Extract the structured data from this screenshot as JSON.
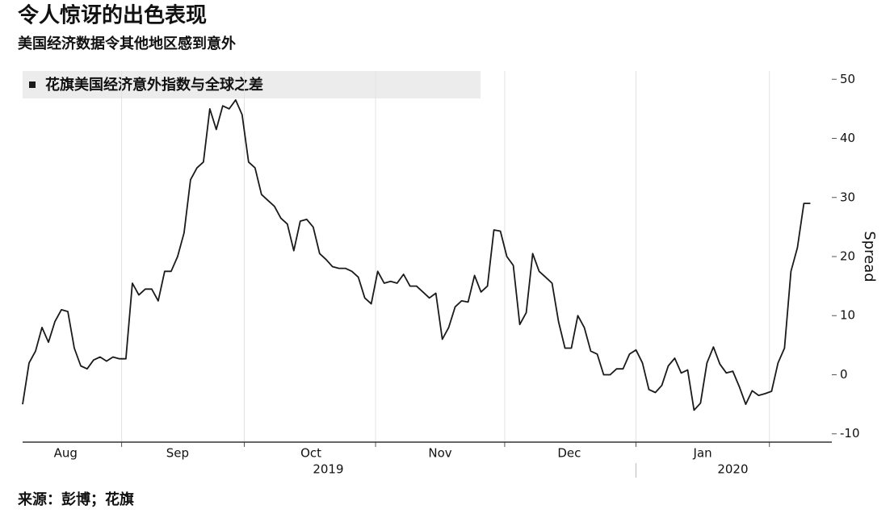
{
  "chart_data": {
    "type": "line",
    "title": "令人惊讶的出色表现",
    "subtitle": "美国经济数据令其他地区感到意外",
    "source": "来源：彭博；花旗",
    "y_label": "Spread",
    "x": [
      0,
      1.5,
      3,
      4.5,
      6,
      7.5,
      9,
      10.5,
      12,
      13.5,
      15,
      16.5,
      18,
      19.5,
      21,
      22.5,
      24,
      25.5,
      27,
      28.5,
      30,
      31.5,
      33,
      34.5,
      36,
      37.5,
      39,
      40.5,
      42,
      43.5,
      45,
      46.5,
      48,
      49.5,
      51,
      52.5,
      54,
      55.5,
      57,
      58.5,
      60,
      61.5,
      63,
      64.5,
      66,
      67.5,
      69,
      70.5,
      72,
      73.5,
      75,
      76.5,
      78,
      79.5,
      81,
      82.5,
      84,
      85.5,
      87,
      88.5,
      90,
      91.5,
      93,
      94.5,
      96,
      97.5,
      99,
      100.5,
      102,
      103.5,
      105,
      106.5,
      108,
      109.5,
      111,
      112.5,
      114,
      115.5,
      117,
      118.5,
      120,
      121.5,
      123,
      124.5,
      126,
      127.5,
      129,
      130.5,
      132,
      133.5,
      135,
      136.5,
      138,
      139.5,
      141,
      142.5,
      144,
      145.5,
      147,
      148.5,
      150,
      151.5,
      153,
      154.5,
      156,
      157.5,
      159,
      160.5,
      162,
      163.5,
      165,
      166.5,
      168,
      169.5,
      171,
      172.5,
      174,
      175.5,
      177,
      178.5,
      180,
      181.5,
      183
    ],
    "series": [
      {
        "name": "花旗美国经济意外指数与全球之差",
        "color": "#1a1a1a",
        "values": [
          -5,
          2,
          4,
          8,
          5.5,
          9,
          11,
          10.7,
          4.5,
          1.5,
          1,
          2.5,
          3,
          2.3,
          3,
          2.7,
          2.7,
          15.5,
          13.5,
          14.5,
          14.5,
          12.5,
          17.5,
          17.5,
          20,
          24,
          33,
          35,
          36,
          45,
          41.5,
          45.5,
          45,
          46.5,
          44,
          36,
          35,
          30.5,
          29.5,
          28.5,
          26.5,
          25.5,
          21,
          26,
          26.3,
          25,
          20.5,
          19.5,
          18.3,
          18,
          18,
          17.5,
          16.5,
          13,
          12,
          17.5,
          15.5,
          15.8,
          15.5,
          17,
          15,
          15,
          14,
          13,
          13.8,
          6,
          8,
          11.5,
          12.5,
          12.3,
          16.8,
          14,
          15,
          24.5,
          24.3,
          20,
          18.5,
          8.5,
          10.5,
          20.5,
          17.5,
          16.5,
          15.5,
          9,
          4.5,
          4.5,
          10,
          8,
          4,
          3.5,
          0,
          0,
          1,
          1,
          3.5,
          4.2,
          2,
          -2.5,
          -3,
          -1.8,
          1.5,
          2.8,
          0.3,
          0.8,
          -6,
          -4.8,
          2,
          4.7,
          1.8,
          0.3,
          0.6,
          -2,
          -5,
          -2.7,
          -3.5,
          -3.2,
          -2.8,
          2,
          4.5,
          17.5,
          21.5,
          29,
          29
        ]
      }
    ],
    "xlim": [
      0,
      188
    ],
    "xticks": [
      {
        "value": 10,
        "label": "Aug"
      },
      {
        "value": 36,
        "label": "Sep"
      },
      {
        "value": 67,
        "label": "Oct"
      },
      {
        "value": 97,
        "label": "Nov"
      },
      {
        "value": 127,
        "label": "Dec"
      },
      {
        "value": 158,
        "label": "Jan"
      }
    ],
    "year_labels": [
      {
        "value": 71,
        "label": "2019"
      },
      {
        "value": 165,
        "label": "2020"
      }
    ],
    "ylim": [
      -11.4,
      51.4
    ],
    "yticks": [
      50,
      40,
      30,
      20,
      10,
      0,
      -10
    ],
    "grid": "x"
  }
}
